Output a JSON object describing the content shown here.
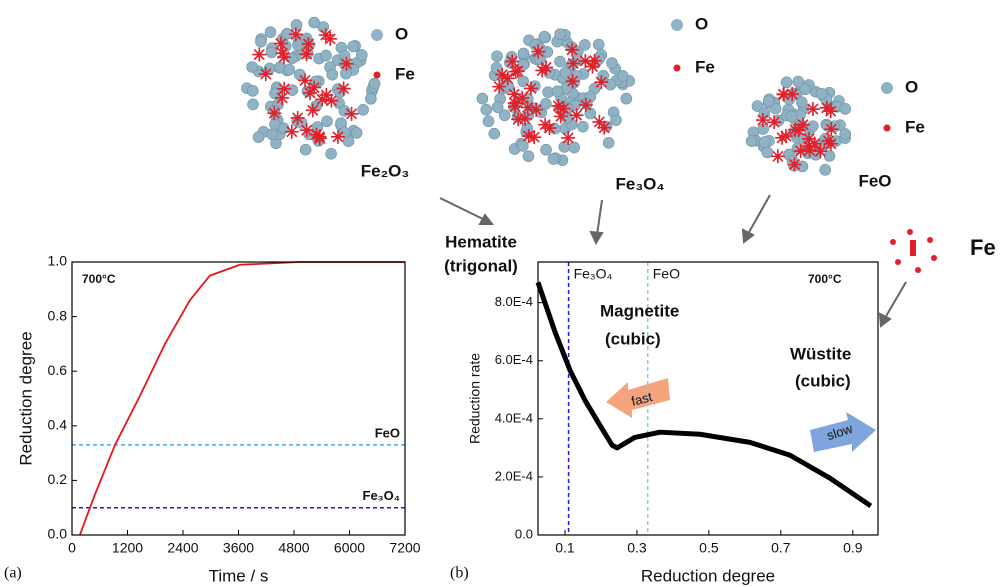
{
  "chart_data": [
    {
      "type": "line",
      "panel": "(a)",
      "xlabel": "Time / s",
      "ylabel": "Reduction degree",
      "xlim": [
        0,
        7200
      ],
      "ylim": [
        0,
        1
      ],
      "xticks": [
        0,
        1200,
        2400,
        3600,
        4800,
        6000,
        7200
      ],
      "yticks": [
        {
          "value": 0,
          "label": "0.0"
        },
        0.2,
        0.4,
        0.6,
        0.8,
        {
          "value": 1,
          "label": "1.0"
        }
      ],
      "series": [
        {
          "color": "#e8141b",
          "x": [
            170,
            300,
            500,
            930,
            1470,
            2010,
            2550,
            2980,
            3630,
            4930,
            7200
          ],
          "values": [
            0,
            0.06,
            0.15,
            0.33,
            0.51,
            0.7,
            0.86,
            0.95,
            0.99,
            1,
            1
          ]
        }
      ],
      "hlines": [
        {
          "name": "FeO",
          "value": 0.33,
          "color": "#3fa9f5"
        },
        {
          "name": "Fe₃O₄",
          "value": 0.1,
          "color": "#1a1ae6"
        }
      ],
      "annotations": [
        "700°C"
      ]
    },
    {
      "type": "line",
      "panel": "(b)",
      "xlabel": "Reduction degree",
      "ylabel": "Reduction rate",
      "xlim": [
        0.025,
        0.97
      ],
      "ylim": [
        0,
        0.00094
      ],
      "xticks": [
        0.1,
        0.3,
        0.5,
        0.7,
        0.9
      ],
      "yticks": [
        {
          "value": 0,
          "label": "0.0"
        },
        {
          "value": 0.0002,
          "label": "2.0E-4"
        },
        {
          "value": 0.0004,
          "label": "4.0E-4"
        },
        {
          "value": 0.0006,
          "label": "6.0E-4"
        },
        {
          "value": 0.0008,
          "label": "8.0E-4"
        }
      ],
      "series": [
        {
          "color": "#000000",
          "x": [
            0.025,
            0.072,
            0.114,
            0.156,
            0.197,
            0.231,
            0.245,
            0.294,
            0.364,
            0.475,
            0.614,
            0.725,
            0.836,
            0.95
          ],
          "values": [
            0.00087,
            0.0007,
            0.000567,
            0.000463,
            0.000378,
            0.000309,
            0.0003,
            0.000336,
            0.000354,
            0.000347,
            0.000319,
            0.000275,
            0.000196,
            0.0001
          ]
        }
      ],
      "vlines": [
        {
          "name": "Fe₃O₄",
          "value": 0.11,
          "color": "#1a1ae6"
        },
        {
          "name": "FeO",
          "value": 0.33,
          "color": "#8ec7ea"
        }
      ],
      "annotations": [
        "700°C",
        "Magnetite",
        "(cubic)",
        "Wüstite",
        "(cubic)",
        "fast",
        "slow"
      ]
    }
  ],
  "phase": [
    "Hematite",
    "(trigonal)"
  ],
  "structures": [
    {
      "formula": "Fe₂O₃",
      "legend": [
        "O",
        "Fe"
      ]
    },
    {
      "formula": "Fe₃O₄",
      "legend": [
        "O",
        "Fe"
      ]
    },
    {
      "formula": "FeO",
      "legend": [
        "O",
        "Fe"
      ]
    }
  ],
  "product": "Fe"
}
